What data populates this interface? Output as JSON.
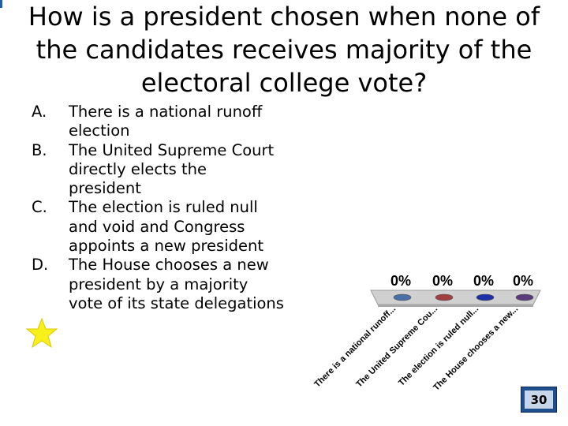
{
  "slide": {
    "title": "How is a president chosen when none of the candidates receives majority of the electoral college vote?",
    "answers": [
      {
        "letter": "A.",
        "text": "There is a national runoff election"
      },
      {
        "letter": "B.",
        "text": "The United Supreme Court directly elects the president"
      },
      {
        "letter": "C.",
        "text": "The election is ruled null and void and Congress appoints a new president"
      },
      {
        "letter": "D.",
        "text": "The House chooses a new president by a majority vote of its state delegations"
      }
    ],
    "correct_marker_icon": "star-icon",
    "countdown": "30"
  },
  "chart_data": {
    "type": "bar",
    "categories": [
      "There is a national runoff...",
      "The United Supreme Cou...",
      "The election is ruled null...",
      "The House chooses a new..."
    ],
    "values": [
      0,
      0,
      0,
      0
    ],
    "value_labels": [
      "0%",
      "0%",
      "0%",
      "0%"
    ],
    "colors": [
      "#4a6fa5",
      "#a04040",
      "#1f2fa8",
      "#5a3a7a"
    ]
  }
}
